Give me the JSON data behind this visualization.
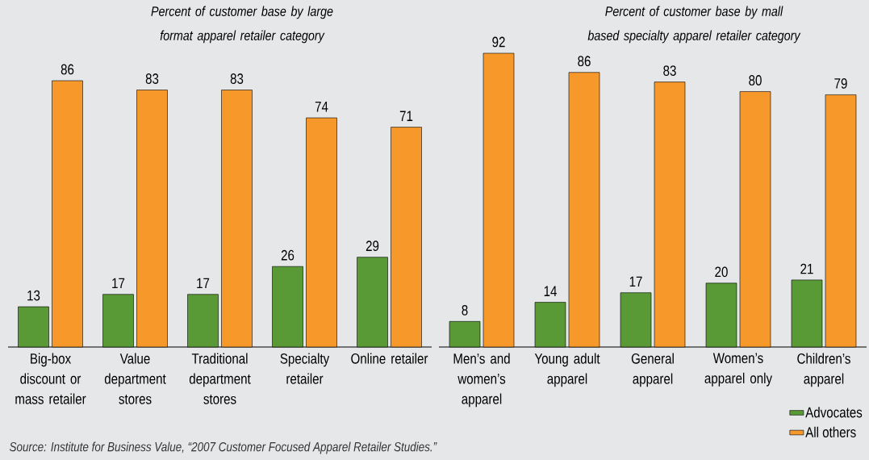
{
  "chart_data": [
    {
      "type": "bar",
      "title": "Percent of customer base by large format apparel retailer category",
      "categories": [
        "Big-box discount or mass retailer",
        "Value department stores",
        "Traditional department stores",
        "Specialty retailer",
        "Online retailer"
      ],
      "series": [
        {
          "color": "#5a9a36",
          "values": [
            13,
            17,
            17,
            26,
            29
          ]
        },
        {
          "color": "#f7982b",
          "values": [
            86,
            83,
            83,
            74,
            71
          ]
        }
      ],
      "data_labels": true,
      "annotations": [
        "Source: Institute for Business Value, “2007 Customer Focused Apparel Retailer Studies.”"
      ]
    },
    {
      "type": "bar",
      "title": "Percent of customer base by mall based specialty apparel retailer category",
      "categories": [
        "Men’s and women’s apparel",
        "Young adult apparel",
        "General apparel",
        "Women’s apparel only",
        "Children’s apparel"
      ],
      "series": [
        {
          "name": "Advocates",
          "color": "#5a9a36",
          "values": [
            8,
            14,
            17,
            20,
            21
          ]
        },
        {
          "name": "All others",
          "color": "#f7982b",
          "values": [
            92,
            86,
            83,
            80,
            79
          ]
        }
      ],
      "data_labels": true,
      "legend": "bottom right"
    }
  ]
}
